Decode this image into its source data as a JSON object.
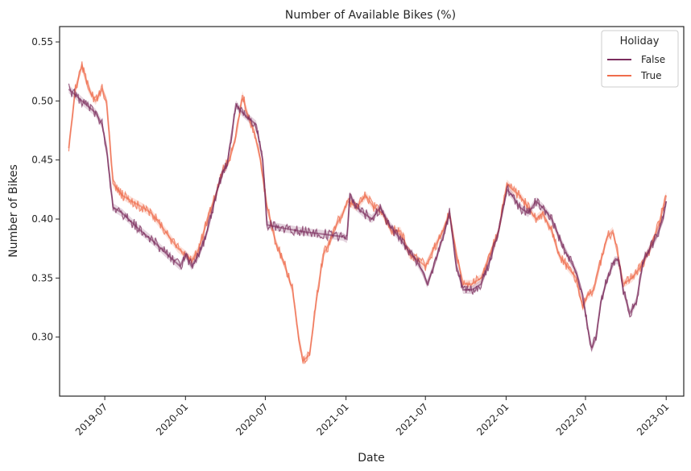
{
  "chart_data": {
    "type": "line",
    "title": "Number of Available Bikes (%)",
    "xlabel": "Date",
    "ylabel": "Number of Bikes",
    "xlim": [
      "2019-03-20",
      "2023-02-10"
    ],
    "ylim": [
      0.25,
      0.563
    ],
    "x_ticks": [
      "2019-07",
      "2020-01",
      "2020-07",
      "2021-01",
      "2021-07",
      "2022-01",
      "2022-07",
      "2023-01"
    ],
    "y_ticks": [
      "0.30",
      "0.35",
      "0.40",
      "0.45",
      "0.50",
      "0.55"
    ],
    "grid": false,
    "legend": {
      "title": "Holiday",
      "placement": "top-right"
    },
    "series": [
      {
        "name": "False",
        "color": "#7b2d5e",
        "x": [
          "2019-04-10",
          "2019-05-10",
          "2019-06-10",
          "2019-06-25",
          "2019-07-05",
          "2019-07-20",
          "2019-08-10",
          "2019-09-15",
          "2019-10-20",
          "2019-11-20",
          "2019-12-20",
          "2020-01-01",
          "2020-01-15",
          "2020-02-01",
          "2020-02-20",
          "2020-03-10",
          "2020-03-25",
          "2020-04-05",
          "2020-04-25",
          "2020-05-10",
          "2020-05-25",
          "2020-06-10",
          "2020-06-25",
          "2020-07-05",
          "2020-08-15",
          "2020-10-01",
          "2020-11-15",
          "2020-12-25",
          "2021-01-03",
          "2021-01-10",
          "2021-01-25",
          "2021-02-10",
          "2021-03-01",
          "2021-03-20",
          "2021-04-10",
          "2021-05-01",
          "2021-05-20",
          "2021-06-10",
          "2021-06-25",
          "2021-07-05",
          "2021-07-20",
          "2021-08-10",
          "2021-08-25",
          "2021-09-10",
          "2021-09-25",
          "2021-10-15",
          "2021-11-05",
          "2021-11-25",
          "2021-12-15",
          "2022-01-03",
          "2022-01-15",
          "2022-02-01",
          "2022-02-20",
          "2022-03-10",
          "2022-03-25",
          "2022-04-15",
          "2022-05-01",
          "2022-05-20",
          "2022-06-10",
          "2022-06-25",
          "2022-07-05",
          "2022-07-15",
          "2022-07-25",
          "2022-08-05",
          "2022-08-20",
          "2022-09-05",
          "2022-09-15",
          "2022-09-25",
          "2022-10-10",
          "2022-10-25",
          "2022-11-10",
          "2022-11-25",
          "2022-12-10",
          "2022-12-25",
          "2023-01-01"
        ],
        "values": [
          0.51,
          0.5,
          0.49,
          0.48,
          0.46,
          0.41,
          0.405,
          0.392,
          0.381,
          0.37,
          0.36,
          0.37,
          0.36,
          0.37,
          0.39,
          0.42,
          0.44,
          0.445,
          0.497,
          0.49,
          0.485,
          0.48,
          0.45,
          0.395,
          0.392,
          0.389,
          0.387,
          0.385,
          0.383,
          0.42,
          0.41,
          0.405,
          0.4,
          0.41,
          0.395,
          0.385,
          0.375,
          0.365,
          0.355,
          0.345,
          0.36,
          0.385,
          0.405,
          0.36,
          0.34,
          0.34,
          0.345,
          0.365,
          0.39,
          0.425,
          0.42,
          0.41,
          0.405,
          0.415,
          0.41,
          0.4,
          0.385,
          0.37,
          0.355,
          0.335,
          0.31,
          0.29,
          0.3,
          0.33,
          0.35,
          0.365,
          0.365,
          0.34,
          0.32,
          0.33,
          0.365,
          0.375,
          0.385,
          0.4,
          0.415
        ]
      },
      {
        "name": "True",
        "color": "#ef6c4c",
        "x": [
          "2019-04-10",
          "2019-04-25",
          "2019-05-10",
          "2019-05-25",
          "2019-06-10",
          "2019-06-25",
          "2019-07-05",
          "2019-07-20",
          "2019-08-10",
          "2019-09-01",
          "2019-09-25",
          "2019-10-15",
          "2019-11-05",
          "2019-11-25",
          "2019-12-15",
          "2020-01-01",
          "2020-01-15",
          "2020-02-01",
          "2020-02-20",
          "2020-03-10",
          "2020-03-25",
          "2020-04-10",
          "2020-04-25",
          "2020-05-10",
          "2020-05-20",
          "2020-06-05",
          "2020-06-20",
          "2020-07-05",
          "2020-07-25",
          "2020-08-15",
          "2020-09-01",
          "2020-09-15",
          "2020-09-25",
          "2020-10-10",
          "2020-10-25",
          "2020-11-10",
          "2020-11-25",
          "2020-12-10",
          "2020-12-25",
          "2021-01-05",
          "2021-01-25",
          "2021-02-15",
          "2021-03-05",
          "2021-03-25",
          "2021-04-15",
          "2021-05-05",
          "2021-05-25",
          "2021-06-15",
          "2021-07-01",
          "2021-07-20",
          "2021-08-10",
          "2021-08-25",
          "2021-09-10",
          "2021-09-25",
          "2021-10-15",
          "2021-11-05",
          "2021-11-25",
          "2021-12-15",
          "2022-01-03",
          "2022-01-15",
          "2022-02-01",
          "2022-02-20",
          "2022-03-10",
          "2022-03-25",
          "2022-04-15",
          "2022-05-01",
          "2022-05-20",
          "2022-06-10",
          "2022-06-25",
          "2022-07-05",
          "2022-07-20",
          "2022-08-05",
          "2022-08-20",
          "2022-09-01",
          "2022-09-10",
          "2022-09-25",
          "2022-10-15",
          "2022-11-05",
          "2022-11-25",
          "2022-12-15",
          "2023-01-01"
        ],
        "values": [
          0.46,
          0.51,
          0.53,
          0.51,
          0.5,
          0.51,
          0.5,
          0.43,
          0.42,
          0.415,
          0.41,
          0.405,
          0.395,
          0.385,
          0.375,
          0.37,
          0.365,
          0.375,
          0.4,
          0.42,
          0.44,
          0.45,
          0.47,
          0.505,
          0.49,
          0.475,
          0.45,
          0.41,
          0.38,
          0.36,
          0.34,
          0.3,
          0.28,
          0.285,
          0.33,
          0.37,
          0.38,
          0.395,
          0.405,
          0.415,
          0.41,
          0.42,
          0.41,
          0.405,
          0.39,
          0.39,
          0.37,
          0.365,
          0.36,
          0.375,
          0.39,
          0.405,
          0.37,
          0.345,
          0.345,
          0.35,
          0.37,
          0.39,
          0.43,
          0.425,
          0.42,
          0.41,
          0.4,
          0.405,
          0.39,
          0.37,
          0.36,
          0.35,
          0.325,
          0.335,
          0.34,
          0.365,
          0.385,
          0.39,
          0.375,
          0.345,
          0.35,
          0.36,
          0.375,
          0.395,
          0.42
        ]
      }
    ]
  }
}
